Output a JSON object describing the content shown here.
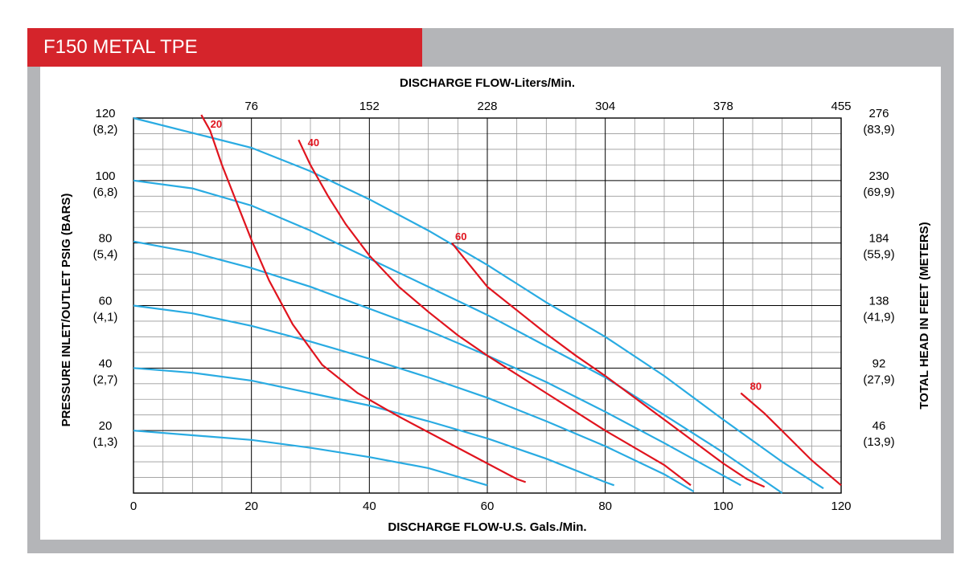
{
  "title": "F150 METAL TPE",
  "colors": {
    "title_bar": "#d5242b",
    "frame": "#b4b5b8",
    "pressure_curve": "#29abe2",
    "air_curve": "#e0141e",
    "grid_major": "#000000",
    "grid_minor": "#9a9a9a"
  },
  "chart_data": {
    "type": "line",
    "x_top_label": "DISCHARGE FLOW-Liters/Min.",
    "x_bottom_label": "DISCHARGE FLOW-U.S. Gals./Min.",
    "y_left_label": "PRESSURE INLET/OUTLET PSIG (BARS)",
    "y_right_label": "TOTAL HEAD IN FEET (METERS)",
    "xlim": [
      0,
      120
    ],
    "ylim": [
      0,
      120
    ],
    "x_bottom_ticks": [
      {
        "value": 0,
        "label": "0"
      },
      {
        "value": 20,
        "label": "20"
      },
      {
        "value": 40,
        "label": "40"
      },
      {
        "value": 60,
        "label": "60"
      },
      {
        "value": 80,
        "label": "80"
      },
      {
        "value": 100,
        "label": "100"
      },
      {
        "value": 120,
        "label": "120"
      }
    ],
    "x_top_ticks": [
      {
        "value": 20,
        "label": "76"
      },
      {
        "value": 40,
        "label": "152"
      },
      {
        "value": 60,
        "label": "228"
      },
      {
        "value": 80,
        "label": "304"
      },
      {
        "value": 100,
        "label": "378"
      },
      {
        "value": 120,
        "label": "455"
      }
    ],
    "y_left_ticks": [
      {
        "value": 120,
        "label": "120",
        "sub": "(8,2)"
      },
      {
        "value": 100,
        "label": "100",
        "sub": "(6,8)"
      },
      {
        "value": 80,
        "label": "80",
        "sub": "(5,4)"
      },
      {
        "value": 60,
        "label": "60",
        "sub": "(4,1)"
      },
      {
        "value": 40,
        "label": "40",
        "sub": "(2,7)"
      },
      {
        "value": 20,
        "label": "20",
        "sub": "(1,3)"
      }
    ],
    "y_right_ticks": [
      {
        "value": 120,
        "label": "276",
        "sub": "(83,9)"
      },
      {
        "value": 100,
        "label": "230",
        "sub": "(69,9)"
      },
      {
        "value": 80,
        "label": "184",
        "sub": "(55,9)"
      },
      {
        "value": 60,
        "label": "138",
        "sub": "(41,9)"
      },
      {
        "value": 40,
        "label": "92",
        "sub": "(27,9)"
      },
      {
        "value": 20,
        "label": "46",
        "sub": "(13,9)"
      }
    ],
    "pressure_curves": [
      {
        "points": [
          [
            0,
            120
          ],
          [
            20,
            110.5
          ],
          [
            30,
            103
          ],
          [
            40,
            94
          ],
          [
            50,
            84
          ],
          [
            60,
            73
          ],
          [
            70,
            61
          ],
          [
            80,
            50
          ],
          [
            90,
            37.5
          ],
          [
            100,
            23.5
          ],
          [
            110,
            10
          ],
          [
            117,
            1.5
          ]
        ]
      },
      {
        "points": [
          [
            0,
            100
          ],
          [
            10,
            97.5
          ],
          [
            20,
            92
          ],
          [
            30,
            84
          ],
          [
            40,
            75
          ],
          [
            50,
            66
          ],
          [
            60,
            57
          ],
          [
            70,
            47
          ],
          [
            80,
            37
          ],
          [
            90,
            25
          ],
          [
            100,
            13
          ],
          [
            110,
            0
          ]
        ]
      },
      {
        "points": [
          [
            0,
            80.5
          ],
          [
            10,
            77
          ],
          [
            20,
            72
          ],
          [
            30,
            66
          ],
          [
            40,
            59
          ],
          [
            50,
            52
          ],
          [
            60,
            44
          ],
          [
            70,
            35.5
          ],
          [
            80,
            26
          ],
          [
            90,
            16
          ],
          [
            103,
            2.5
          ]
        ]
      },
      {
        "points": [
          [
            0,
            60
          ],
          [
            10,
            57.5
          ],
          [
            20,
            53.5
          ],
          [
            30,
            48.5
          ],
          [
            40,
            43
          ],
          [
            50,
            37
          ],
          [
            60,
            30.5
          ],
          [
            70,
            23
          ],
          [
            80,
            15
          ],
          [
            90,
            6
          ],
          [
            95,
            0.5
          ]
        ]
      },
      {
        "points": [
          [
            0,
            40
          ],
          [
            10,
            38.5
          ],
          [
            20,
            36
          ],
          [
            30,
            32
          ],
          [
            40,
            28
          ],
          [
            50,
            23
          ],
          [
            60,
            17.5
          ],
          [
            70,
            11
          ],
          [
            80,
            3.5
          ],
          [
            81.5,
            2.5
          ]
        ]
      },
      {
        "points": [
          [
            0,
            20
          ],
          [
            10,
            18.5
          ],
          [
            20,
            17
          ],
          [
            30,
            14.5
          ],
          [
            40,
            11.5
          ],
          [
            50,
            8
          ],
          [
            60,
            2.5
          ]
        ]
      }
    ],
    "air_curves": [
      {
        "label": "20",
        "points": [
          [
            11.5,
            121
          ],
          [
            13,
            116
          ],
          [
            15,
            105
          ],
          [
            17.5,
            93
          ],
          [
            20,
            81
          ],
          [
            23,
            68
          ],
          [
            27,
            54
          ],
          [
            32,
            41
          ],
          [
            38,
            32
          ],
          [
            45,
            24.5
          ],
          [
            55,
            14.5
          ],
          [
            65,
            4.5
          ],
          [
            66.5,
            3.5
          ]
        ]
      },
      {
        "label": "40",
        "points": [
          [
            28,
            113
          ],
          [
            30,
            105
          ],
          [
            33,
            95
          ],
          [
            36,
            86
          ],
          [
            40,
            76
          ],
          [
            45,
            66
          ],
          [
            50,
            58
          ],
          [
            55,
            50.5
          ],
          [
            60,
            44
          ],
          [
            70,
            32
          ],
          [
            80,
            20
          ],
          [
            90,
            9
          ],
          [
            94.5,
            2.5
          ]
        ]
      },
      {
        "label": "60",
        "points": [
          [
            54,
            80
          ],
          [
            57,
            73
          ],
          [
            60,
            66
          ],
          [
            65,
            58.5
          ],
          [
            70,
            51
          ],
          [
            75,
            44
          ],
          [
            80,
            37.5
          ],
          [
            85,
            30.5
          ],
          [
            90,
            23.5
          ],
          [
            95,
            16.5
          ],
          [
            100,
            9.5
          ],
          [
            104,
            4.5
          ],
          [
            107,
            2
          ]
        ]
      },
      {
        "label": "80",
        "points": [
          [
            103,
            32
          ],
          [
            107,
            25.5
          ],
          [
            111,
            18
          ],
          [
            115,
            10.5
          ],
          [
            120,
            2.5
          ]
        ]
      }
    ],
    "curve_labels": [
      {
        "text": "20",
        "x": 12.5,
        "y": 118
      },
      {
        "text": "40",
        "x": 29,
        "y": 112
      },
      {
        "text": "60",
        "x": 54,
        "y": 82
      },
      {
        "text": "80",
        "x": 104,
        "y": 34
      }
    ]
  }
}
